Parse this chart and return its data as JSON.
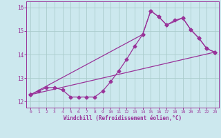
{
  "title": "",
  "xlabel": "Windchill (Refroidissement éolien,°C)",
  "bg_color": "#cce8ee",
  "line_color": "#993399",
  "grid_color": "#aacccc",
  "xlim": [
    -0.5,
    23.5
  ],
  "ylim": [
    11.75,
    16.25
  ],
  "yticks": [
    12,
    13,
    14,
    15,
    16
  ],
  "xticks": [
    0,
    1,
    2,
    3,
    4,
    5,
    6,
    7,
    8,
    9,
    10,
    11,
    12,
    13,
    14,
    15,
    16,
    17,
    18,
    19,
    20,
    21,
    22,
    23
  ],
  "line1_x": [
    0,
    1,
    2,
    3,
    4,
    5,
    6,
    7,
    8,
    9,
    10,
    11,
    12,
    13,
    14,
    15,
    16,
    17,
    18,
    19,
    20,
    21,
    22,
    23
  ],
  "line1_y": [
    12.3,
    12.45,
    12.6,
    12.6,
    12.5,
    12.2,
    12.2,
    12.2,
    12.2,
    12.45,
    12.85,
    13.3,
    13.8,
    14.35,
    14.85,
    15.85,
    15.6,
    15.25,
    15.45,
    15.55,
    15.05,
    14.7,
    14.25,
    14.1
  ],
  "line2_x": [
    0,
    23
  ],
  "line2_y": [
    12.3,
    14.1
  ],
  "line3_x": [
    0,
    14,
    15,
    16,
    17,
    19,
    20,
    21,
    22,
    23
  ],
  "line3_y": [
    12.3,
    14.85,
    15.85,
    15.6,
    15.25,
    15.55,
    15.05,
    14.7,
    14.25,
    14.1
  ]
}
